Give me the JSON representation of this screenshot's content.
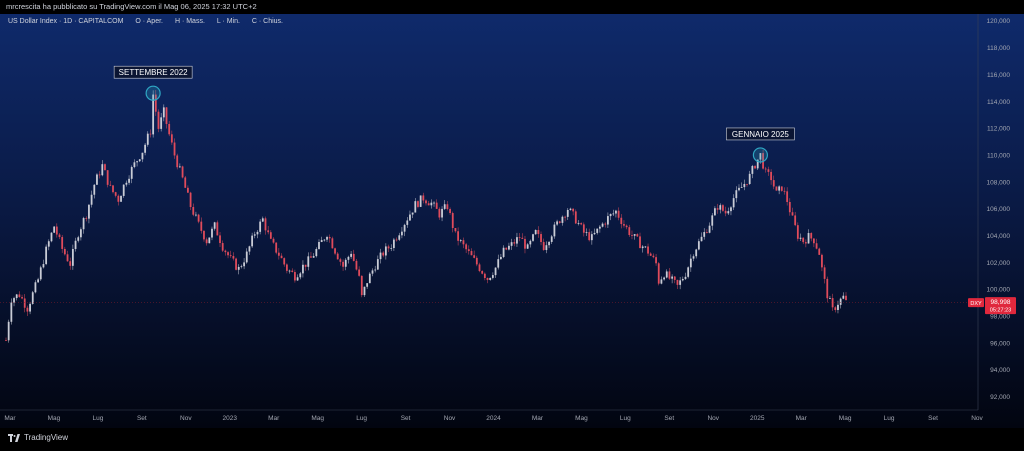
{
  "header": {
    "published_by": "mrcrescita ha pubblicato su TradingView.com il Mag 06, 2025 17:32 UTC+2"
  },
  "legend": {
    "symbol": "US Dollar Index · 1D · CAPITALCOM",
    "open_label": "O · Aper.",
    "high_label": "H · Mass.",
    "low_label": "L · Min.",
    "close_label": "C · Chius."
  },
  "footer": {
    "brand": "TradingView"
  },
  "colors": {
    "up": "#c9ccd6",
    "down": "#e04b5b",
    "accent_circle": "#2fa7c4",
    "price_tag": "#e0283d"
  },
  "chart_data": {
    "type": "candlestick",
    "title": "US Dollar Index · 1D · CAPITALCOM",
    "ylim": [
      91,
      120.5
    ],
    "y_ticks": [
      92,
      94,
      96,
      98,
      100,
      102,
      104,
      106,
      108,
      110,
      112,
      114,
      116,
      118,
      120
    ],
    "y_tick_labels": [
      "92,000",
      "94,000",
      "96,000",
      "98,000",
      "100,000",
      "102,000",
      "104,000",
      "106,000",
      "108,000",
      "110,000",
      "112,000",
      "114,000",
      "116,000",
      "118,000",
      "120,000"
    ],
    "x_ticks": [
      "Mar",
      "Mag",
      "Lug",
      "Set",
      "Nov",
      "2023",
      "Mar",
      "Mag",
      "Lug",
      "Set",
      "Nov",
      "2024",
      "Mar",
      "Mag",
      "Lug",
      "Set",
      "Nov",
      "2025",
      "Mar",
      "Mag",
      "Lug",
      "Set",
      "Nov"
    ],
    "anchors": [
      [
        0,
        96.2
      ],
      [
        2,
        99.3
      ],
      [
        5,
        99.6
      ],
      [
        8,
        98.6
      ],
      [
        12,
        100.7
      ],
      [
        15,
        102.9
      ],
      [
        18,
        104.7
      ],
      [
        21,
        103.0
      ],
      [
        24,
        101.9
      ],
      [
        27,
        104.2
      ],
      [
        30,
        105.6
      ],
      [
        33,
        107.8
      ],
      [
        36,
        109.2
      ],
      [
        39,
        107.5
      ],
      [
        42,
        106.7
      ],
      [
        45,
        108.2
      ],
      [
        48,
        109.3
      ],
      [
        51,
        110.3
      ],
      [
        54,
        111.8
      ],
      [
        55,
        114.5
      ],
      [
        57,
        112.0
      ],
      [
        59,
        113.2
      ],
      [
        61,
        111.5
      ],
      [
        63,
        110.0
      ],
      [
        66,
        108.2
      ],
      [
        69,
        106.2
      ],
      [
        72,
        104.8
      ],
      [
        75,
        103.6
      ],
      [
        78,
        104.7
      ],
      [
        81,
        103.2
      ],
      [
        84,
        102.2
      ],
      [
        87,
        101.5
      ],
      [
        90,
        102.6
      ],
      [
        93,
        104.2
      ],
      [
        96,
        105.2
      ],
      [
        99,
        103.5
      ],
      [
        102,
        102.6
      ],
      [
        105,
        101.5
      ],
      [
        108,
        101.0
      ],
      [
        111,
        101.7
      ],
      [
        114,
        102.3
      ],
      [
        117,
        103.2
      ],
      [
        120,
        104.2
      ],
      [
        123,
        102.9
      ],
      [
        126,
        101.7
      ],
      [
        129,
        102.8
      ],
      [
        132,
        100.8
      ],
      [
        133,
        99.4
      ],
      [
        135,
        100.6
      ],
      [
        138,
        101.8
      ],
      [
        141,
        102.7
      ],
      [
        144,
        103.3
      ],
      [
        147,
        104.3
      ],
      [
        150,
        105.3
      ],
      [
        153,
        106.3
      ],
      [
        156,
        106.8
      ],
      [
        159,
        106.4
      ],
      [
        162,
        105.6
      ],
      [
        165,
        106.2
      ],
      [
        168,
        104.0
      ],
      [
        171,
        103.2
      ],
      [
        174,
        102.4
      ],
      [
        177,
        101.6
      ],
      [
        180,
        100.8
      ],
      [
        183,
        101.6
      ],
      [
        186,
        102.8
      ],
      [
        189,
        103.3
      ],
      [
        192,
        103.9
      ],
      [
        195,
        103.0
      ],
      [
        198,
        104.2
      ],
      [
        201,
        103.2
      ],
      [
        204,
        104.2
      ],
      [
        207,
        105.2
      ],
      [
        210,
        106.0
      ],
      [
        213,
        105.2
      ],
      [
        216,
        104.2
      ],
      [
        219,
        103.8
      ],
      [
        222,
        104.6
      ],
      [
        225,
        105.3
      ],
      [
        228,
        105.8
      ],
      [
        231,
        104.8
      ],
      [
        234,
        104.0
      ],
      [
        237,
        103.4
      ],
      [
        240,
        102.8
      ],
      [
        243,
        101.9
      ],
      [
        244,
        100.6
      ],
      [
        246,
        101.2
      ],
      [
        249,
        100.6
      ],
      [
        251,
        100.2
      ],
      [
        254,
        101.2
      ],
      [
        257,
        102.8
      ],
      [
        260,
        103.8
      ],
      [
        263,
        104.9
      ],
      [
        266,
        106.2
      ],
      [
        269,
        105.7
      ],
      [
        272,
        106.8
      ],
      [
        275,
        107.6
      ],
      [
        278,
        108.4
      ],
      [
        280,
        109.3
      ],
      [
        282,
        110.0
      ],
      [
        284,
        108.6
      ],
      [
        286,
        108.3
      ],
      [
        288,
        107.1
      ],
      [
        290,
        107.6
      ],
      [
        292,
        106.6
      ],
      [
        294,
        105.2
      ],
      [
        296,
        104.0
      ],
      [
        298,
        103.6
      ],
      [
        300,
        103.9
      ],
      [
        302,
        103.7
      ],
      [
        304,
        102.7
      ],
      [
        305,
        101.5
      ],
      [
        307,
        99.6
      ],
      [
        309,
        98.4
      ],
      [
        311,
        99.0
      ],
      [
        313,
        99.4
      ],
      [
        314,
        99.0
      ]
    ],
    "annotations": [
      {
        "label": "SETTEMBRE 2022",
        "value": 114.6
      },
      {
        "label": "GENNAIO 2025",
        "value": 110.0
      }
    ],
    "last_price": {
      "symbol": "DXY",
      "value": "98,998",
      "countdown": "05:27:23"
    },
    "grid": false,
    "legend_position": "top-left"
  }
}
